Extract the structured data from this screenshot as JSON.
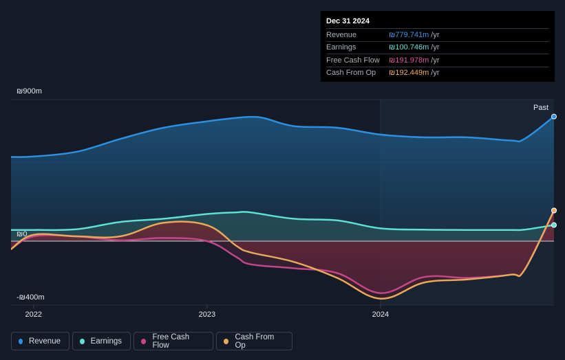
{
  "colors": {
    "revenue": "#2d8fe0",
    "earnings": "#5fe0d2",
    "fcf": "#c4468a",
    "cfo": "#e8a95a",
    "background": "#151b26"
  },
  "tooltip": {
    "date": "Dec 31 2024",
    "rows": [
      {
        "label": "Revenue",
        "value": "₪779.741m",
        "unit": "/yr",
        "color": "#3b95e6"
      },
      {
        "label": "Earnings",
        "value": "₪100.746m",
        "unit": "/yr",
        "color": "#5fe0d2"
      },
      {
        "label": "Free Cash Flow",
        "value": "₪191.978m",
        "unit": "/yr",
        "color": "#e0559c"
      },
      {
        "label": "Cash From Op",
        "value": "₪192.449m",
        "unit": "/yr",
        "color": "#f0ae5e"
      }
    ]
  },
  "legend": [
    {
      "label": "Revenue",
      "icon": "revenue-dot-icon",
      "color": "#2d8fe0"
    },
    {
      "label": "Earnings",
      "icon": "earnings-dot-icon",
      "color": "#5fe0d2"
    },
    {
      "label": "Free Cash Flow",
      "icon": "fcf-dot-icon",
      "color": "#c4468a"
    },
    {
      "label": "Cash From Op",
      "icon": "cfo-dot-icon",
      "color": "#e8a95a"
    }
  ],
  "chart_data": {
    "type": "area",
    "title": "",
    "xlabel": "",
    "ylabel": "",
    "ylim": [
      -400,
      900
    ],
    "y_ticks": [
      {
        "value": 900,
        "label": "₪900m"
      },
      {
        "value": 0,
        "label": "₪0"
      },
      {
        "value": -400,
        "label": "-₪400m"
      }
    ],
    "x_ticks": [
      {
        "value": 2022.0,
        "label": "2022"
      },
      {
        "value": 2023.0,
        "label": "2023"
      },
      {
        "value": 2024.0,
        "label": "2024"
      }
    ],
    "xlim": [
      2021.87,
      2025.0
    ],
    "past_start": 2024.0,
    "past_label": "Past",
    "series": [
      {
        "name": "Revenue",
        "key": "revenue",
        "points": [
          [
            2021.87,
            527
          ],
          [
            2022.0,
            530
          ],
          [
            2022.25,
            560
          ],
          [
            2022.5,
            640
          ],
          [
            2022.75,
            710
          ],
          [
            2023.0,
            750
          ],
          [
            2023.17,
            772
          ],
          [
            2023.25,
            778
          ],
          [
            2023.33,
            770
          ],
          [
            2023.5,
            720
          ],
          [
            2023.75,
            710
          ],
          [
            2024.0,
            667
          ],
          [
            2024.25,
            650
          ],
          [
            2024.5,
            650
          ],
          [
            2024.75,
            630
          ],
          [
            2024.83,
            640
          ],
          [
            2025.0,
            780
          ]
        ]
      },
      {
        "name": "Earnings",
        "key": "earnings",
        "points": [
          [
            2021.87,
            70
          ],
          [
            2022.0,
            70
          ],
          [
            2022.25,
            75
          ],
          [
            2022.5,
            120
          ],
          [
            2022.75,
            140
          ],
          [
            2023.0,
            170
          ],
          [
            2023.17,
            180
          ],
          [
            2023.25,
            180
          ],
          [
            2023.5,
            140
          ],
          [
            2023.75,
            130
          ],
          [
            2024.0,
            80
          ],
          [
            2024.25,
            72
          ],
          [
            2024.5,
            70
          ],
          [
            2024.75,
            70
          ],
          [
            2024.83,
            72
          ],
          [
            2025.0,
            101
          ]
        ]
      },
      {
        "name": "Free Cash Flow",
        "key": "fcf",
        "points": [
          [
            2021.87,
            -50
          ],
          [
            2022.0,
            30
          ],
          [
            2022.25,
            30
          ],
          [
            2022.5,
            5
          ],
          [
            2022.75,
            20
          ],
          [
            2023.0,
            0
          ],
          [
            2023.17,
            -100
          ],
          [
            2023.25,
            -145
          ],
          [
            2023.5,
            -170
          ],
          [
            2023.75,
            -200
          ],
          [
            2024.0,
            -325
          ],
          [
            2024.25,
            -225
          ],
          [
            2024.5,
            -230
          ],
          [
            2024.75,
            -210
          ],
          [
            2024.83,
            -180
          ],
          [
            2025.0,
            192
          ]
        ]
      },
      {
        "name": "Cash From Op",
        "key": "cfo",
        "points": [
          [
            2021.87,
            -50
          ],
          [
            2022.0,
            40
          ],
          [
            2022.25,
            30
          ],
          [
            2022.5,
            30
          ],
          [
            2022.75,
            115
          ],
          [
            2023.0,
            100
          ],
          [
            2023.17,
            -30
          ],
          [
            2023.25,
            -70
          ],
          [
            2023.5,
            -130
          ],
          [
            2023.75,
            -230
          ],
          [
            2024.0,
            -360
          ],
          [
            2024.25,
            -260
          ],
          [
            2024.5,
            -240
          ],
          [
            2024.75,
            -210
          ],
          [
            2024.83,
            -180
          ],
          [
            2025.0,
            192
          ]
        ]
      }
    ]
  }
}
